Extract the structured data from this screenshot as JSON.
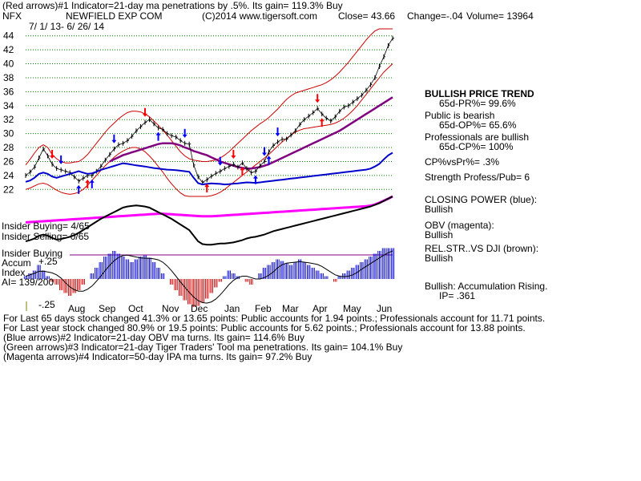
{
  "header": {
    "red_arrows_line": "(Red arrows)#1 Indicator=21-day ma penetrations by .5%. Its gain= 119.3% Buy",
    "ticker": "NFX",
    "company": "NEWFIELD EXP COM",
    "copyright": "(C)2014 www.tigersoft.com",
    "close": "Close= 43.66",
    "change": "Change=-.04",
    "volume": "Volume= 13964",
    "date_range": "7/ 1/ 13- 6/ 26/ 14"
  },
  "right_panel": {
    "trend": "BULLISH PRICE TREND",
    "pr": "65d-PR%= 99.6%",
    "public": "Public is bearish",
    "op": "65d-OP%= 65.6%",
    "pros": "Professionals are bullish",
    "cp": "65d-CP%= 100%",
    "cpvspr": "CP%vsPr%= .3%",
    "strength": "Strength Profess/Pub= 6",
    "closing_power": "CLOSING POWER (blue):",
    "closing_power_value": "Bullish",
    "obv": "OBV (magenta):",
    "obv_value": "Bullish",
    "relstr": "REL.STR..VS DJI (brown):",
    "relstr_value": "Bullish",
    "accum": "Bullish: Accumulation Rising.",
    "ip": "IP= .361"
  },
  "left_panel": {
    "insider_buying": "Insider Buying= 4/65",
    "insider_selling": "Insider Selling= 0/65",
    "insider_buying2": "Insider Buying",
    "accum_label": "Accum",
    "accum_plus": "+.25",
    "index_label": "Index",
    "ai": "AI= 139/200",
    "minus": "-.25"
  },
  "footer": {
    "line1": "For Last 65 days stock changed  41.3% or  13.65 points:  Public accounts for  1.94 points.;  Professionals account for  11.71 points.",
    "line2": "For Last year stock changed  80.9% or  19.5 points:  Public accounts for  5.62 points.;  Professionals account for  13.88 points.",
    "line3": "(Blue arrows)#2 Indicator=21-day OBV ma turns. Its gain= 114.6% Buy",
    "line4": "(Green arrows)#3 Indicator=21-day Tiger Traders' Tool ma penetrations. Its gain= 104.1% Buy",
    "line5": "(Magenta arrows)#4 Indicator=50-day IPA ma turns. Its gain= 97.2% Buy"
  },
  "colors": {
    "price": "#000000",
    "band": "#cc0000",
    "ma": "#800080",
    "closing_power": "#0000cc",
    "obv": "#ff00ff",
    "relstr": "#000000",
    "accum_pos": "#0000cc",
    "accum_neg": "#cc0000",
    "grid": "#008000",
    "up_arrow": "#0000ff",
    "down_arrow": "#ff0000"
  },
  "chart_data": {
    "type": "line",
    "ylim": [
      21,
      45
    ],
    "yticks": [
      22,
      24,
      26,
      28,
      30,
      32,
      34,
      36,
      38,
      40,
      42,
      44
    ],
    "months": [
      "Aug",
      "Sep",
      "Oct",
      "Nov",
      "Dec",
      "Jan",
      "Feb",
      "Mar",
      "Apr",
      "May",
      "Jun"
    ],
    "grid": true,
    "price": [
      24.0,
      24.5,
      25.2,
      26.5,
      27.8,
      26.8,
      25.6,
      25.0,
      24.8,
      24.6,
      24.4,
      23.8,
      23.2,
      23.6,
      24.0,
      24.0,
      24.6,
      25.3,
      26.2,
      27.0,
      27.8,
      28.4,
      28.6,
      29.0,
      29.6,
      30.4,
      31.0,
      31.6,
      32.0,
      31.4,
      30.8,
      30.6,
      30.0,
      29.7,
      29.5,
      29.0,
      28.6,
      28.5,
      25.5,
      23.8,
      23.0,
      23.4,
      23.9,
      24.3,
      24.6,
      25.0,
      25.3,
      25.6,
      25.2,
      25.8,
      25.0,
      24.4,
      24.6,
      25.4,
      26.0,
      27.4,
      28.3,
      28.8,
      29.2,
      29.2,
      29.8,
      30.4,
      31.3,
      32.0,
      32.5,
      33.0,
      33.6,
      32.8,
      32.2,
      31.8,
      32.4,
      33.2,
      33.8,
      34.0,
      34.5,
      35.0,
      35.5,
      36.2,
      37.0,
      38.0,
      39.6,
      41.0,
      42.6,
      43.66
    ],
    "upper_band": [
      25.5,
      26.3,
      27.2,
      28.0,
      28.4,
      28.0,
      27.0,
      26.4,
      26.0,
      25.8,
      25.8,
      25.9,
      26.0,
      26.4,
      27.0,
      27.8,
      28.6,
      29.4,
      30.2,
      30.9,
      31.5,
      32.1,
      32.6,
      33.0,
      33.2,
      33.2,
      33.1,
      32.8,
      32.4,
      31.8,
      31.2,
      30.5,
      29.8,
      29.0,
      28.2,
      27.4,
      26.8,
      26.4,
      26.2,
      26.1,
      26.0,
      26.0,
      26.1,
      26.2,
      26.5,
      26.9,
      27.4,
      28.0,
      28.6,
      29.2,
      29.8,
      30.4,
      30.9,
      31.4,
      31.8,
      32.3,
      32.9,
      33.5,
      34.2,
      34.9,
      35.4,
      35.8,
      36.0,
      36.2,
      36.4,
      36.6,
      36.8,
      37.0,
      37.3,
      37.7,
      38.2,
      38.8,
      39.5,
      40.2,
      41.0,
      41.8,
      42.6,
      43.4,
      44.1,
      44.7,
      45.0,
      45.0,
      45.0,
      45.0
    ],
    "lower_band": [
      22.0,
      22.2,
      22.5,
      22.8,
      22.9,
      22.7,
      22.3,
      21.9,
      21.6,
      21.4,
      21.3,
      21.4,
      21.6,
      22.0,
      22.6,
      23.3,
      24.0,
      24.7,
      25.4,
      26.0,
      26.6,
      27.1,
      27.5,
      27.8,
      28.0,
      28.0,
      27.8,
      27.4,
      26.8,
      26.1,
      25.3,
      24.5,
      23.6,
      22.8,
      22.1,
      21.5,
      21.1,
      21.0,
      21.0,
      21.0,
      21.0,
      21.0,
      21.1,
      21.3,
      21.6,
      22.0,
      22.5,
      23.0,
      23.5,
      24.0,
      24.5,
      25.0,
      25.5,
      26.0,
      26.5,
      27.0,
      27.6,
      28.2,
      28.8,
      29.3,
      29.8,
      30.2,
      30.5,
      30.7,
      30.8,
      30.9,
      31.0,
      31.1,
      31.2,
      31.3,
      31.5,
      31.8,
      32.2,
      32.7,
      33.3,
      34.0,
      34.8,
      35.6,
      36.4,
      37.2,
      38.0,
      38.8,
      39.4,
      40.0
    ],
    "ma50": [
      null,
      null,
      null,
      null,
      null,
      null,
      null,
      null,
      null,
      null,
      null,
      null,
      null,
      null,
      null,
      null,
      null,
      null,
      null,
      26.0,
      26.3,
      26.6,
      26.9,
      27.1,
      27.3,
      27.5,
      27.7,
      27.9,
      28.1,
      28.3,
      28.5,
      28.6,
      28.6,
      28.6,
      28.5,
      28.3,
      28.0,
      27.8,
      27.5,
      27.3,
      27.1,
      26.9,
      26.6,
      26.3,
      26.0,
      25.8,
      25.6,
      25.4,
      25.2,
      25.1,
      25.0,
      25.0,
      25.1,
      25.2,
      25.4,
      25.6,
      25.9,
      26.2,
      26.5,
      26.8,
      27.1,
      27.4,
      27.7,
      28.0,
      28.3,
      28.6,
      28.9,
      29.2,
      29.5,
      29.8,
      30.1,
      30.4,
      30.8,
      31.2,
      31.6,
      32.0,
      32.4,
      32.8,
      33.2,
      33.6,
      34.0,
      34.4,
      34.8,
      35.2
    ],
    "closing_power": [
      0.4,
      0.45,
      0.55,
      0.7,
      0.75,
      0.7,
      0.6,
      0.55,
      0.6,
      0.65,
      0.7,
      0.75,
      0.8,
      0.75,
      0.7,
      0.72,
      0.78,
      0.85,
      0.9,
      0.95,
      1.0,
      1.05,
      1.1,
      1.08,
      1.05,
      1.02,
      1.0,
      0.98,
      0.95,
      0.92,
      0.9,
      0.88,
      0.86,
      0.85,
      0.84,
      0.82,
      0.8,
      0.78,
      0.55,
      0.35,
      0.3,
      0.32,
      0.34,
      0.33,
      0.32,
      0.3,
      0.31,
      0.33,
      0.34,
      0.36,
      0.38,
      0.37,
      0.36,
      0.38,
      0.4,
      0.42,
      0.44,
      0.46,
      0.48,
      0.5,
      0.52,
      0.54,
      0.56,
      0.58,
      0.6,
      0.62,
      0.64,
      0.66,
      0.68,
      0.7,
      0.72,
      0.74,
      0.76,
      0.78,
      0.8,
      0.82,
      0.84,
      0.86,
      0.9,
      0.98,
      1.08,
      1.25,
      1.4,
      1.5
    ],
    "obv": [
      0.1,
      0.11,
      0.12,
      0.13,
      0.14,
      0.15,
      0.16,
      0.17,
      0.18,
      0.19,
      0.2,
      0.21,
      0.22,
      0.23,
      0.24,
      0.25,
      0.26,
      0.27,
      0.28,
      0.29,
      0.3,
      0.31,
      0.32,
      0.33,
      0.34,
      0.35,
      0.36,
      0.37,
      0.38,
      0.39,
      0.4,
      0.4,
      0.39,
      0.38,
      0.37,
      0.36,
      0.35,
      0.34,
      0.33,
      0.32,
      0.31,
      0.31,
      0.31,
      0.32,
      0.33,
      0.34,
      0.35,
      0.36,
      0.37,
      0.38,
      0.39,
      0.4,
      0.41,
      0.42,
      0.43,
      0.44,
      0.45,
      0.46,
      0.47,
      0.48,
      0.49,
      0.5,
      0.51,
      0.52,
      0.53,
      0.54,
      0.55,
      0.56,
      0.57,
      0.58,
      0.59,
      0.6,
      0.61,
      0.62,
      0.63,
      0.64,
      0.65,
      0.66,
      0.68,
      0.72,
      0.78,
      0.85,
      0.92,
      1.0
    ],
    "relstr": [
      0.3,
      0.32,
      0.35,
      0.4,
      0.42,
      0.4,
      0.36,
      0.33,
      0.34,
      0.36,
      0.38,
      0.41,
      0.45,
      0.5,
      0.55,
      0.6,
      0.65,
      0.7,
      0.74,
      0.78,
      0.82,
      0.86,
      0.9,
      0.92,
      0.93,
      0.94,
      0.93,
      0.92,
      0.9,
      0.86,
      0.82,
      0.78,
      0.74,
      0.7,
      0.65,
      0.6,
      0.55,
      0.5,
      0.4,
      0.3,
      0.25,
      0.24,
      0.24,
      0.25,
      0.26,
      0.26,
      0.27,
      0.28,
      0.3,
      0.32,
      0.35,
      0.37,
      0.38,
      0.4,
      0.42,
      0.45,
      0.48,
      0.5,
      0.52,
      0.54,
      0.56,
      0.58,
      0.6,
      0.62,
      0.64,
      0.66,
      0.68,
      0.7,
      0.72,
      0.74,
      0.76,
      0.78,
      0.8,
      0.82,
      0.84,
      0.86,
      0.88,
      0.9,
      0.92,
      0.95,
      0.98,
      1.02,
      1.06,
      1.1
    ],
    "accum": [
      0.05,
      0.1,
      0.15,
      0.25,
      0.15,
      0.05,
      -0.05,
      -0.1,
      -0.2,
      -0.25,
      -0.3,
      -0.25,
      -0.2,
      -0.1,
      0.0,
      0.1,
      0.2,
      0.3,
      0.4,
      0.45,
      0.5,
      0.45,
      0.4,
      0.35,
      0.3,
      0.35,
      0.4,
      0.42,
      0.38,
      0.3,
      0.2,
      0.1,
      0.0,
      -0.1,
      -0.2,
      -0.3,
      -0.38,
      -0.45,
      -0.5,
      -0.48,
      -0.42,
      -0.35,
      -0.25,
      -0.15,
      -0.05,
      0.05,
      0.15,
      0.1,
      0.05,
      0.0,
      -0.05,
      -0.1,
      0.0,
      0.1,
      0.2,
      0.25,
      0.3,
      0.35,
      0.32,
      0.28,
      0.25,
      0.3,
      0.35,
      0.3,
      0.25,
      0.2,
      0.15,
      0.1,
      0.05,
      0.0,
      -0.05,
      0.05,
      0.1,
      0.15,
      0.2,
      0.25,
      0.3,
      0.35,
      0.4,
      0.45,
      0.5,
      0.55,
      0.55,
      0.55
    ],
    "up_arrows": [
      {
        "i": 12,
        "color": "#0000ff"
      },
      {
        "i": 14,
        "color": "#ff0000"
      },
      {
        "i": 15,
        "color": "#0000ff"
      },
      {
        "i": 30,
        "color": "#0000ff"
      },
      {
        "i": 41,
        "color": "#ff0000"
      },
      {
        "i": 49,
        "color": "#ff0000"
      },
      {
        "i": 52,
        "color": "#0000ff"
      },
      {
        "i": 55,
        "color": "#0000ff"
      },
      {
        "i": 67,
        "color": "#ff0000"
      }
    ],
    "down_arrows": [
      {
        "i": 6,
        "color": "#ff0000"
      },
      {
        "i": 8,
        "color": "#0000ff"
      },
      {
        "i": 20,
        "color": "#0000ff"
      },
      {
        "i": 27,
        "color": "#ff0000"
      },
      {
        "i": 36,
        "color": "#0000ff"
      },
      {
        "i": 44,
        "color": "#0000ff"
      },
      {
        "i": 47,
        "color": "#ff0000"
      },
      {
        "i": 54,
        "color": "#0000ff"
      },
      {
        "i": 57,
        "color": "#0000ff"
      },
      {
        "i": 66,
        "color": "#ff0000"
      }
    ]
  }
}
